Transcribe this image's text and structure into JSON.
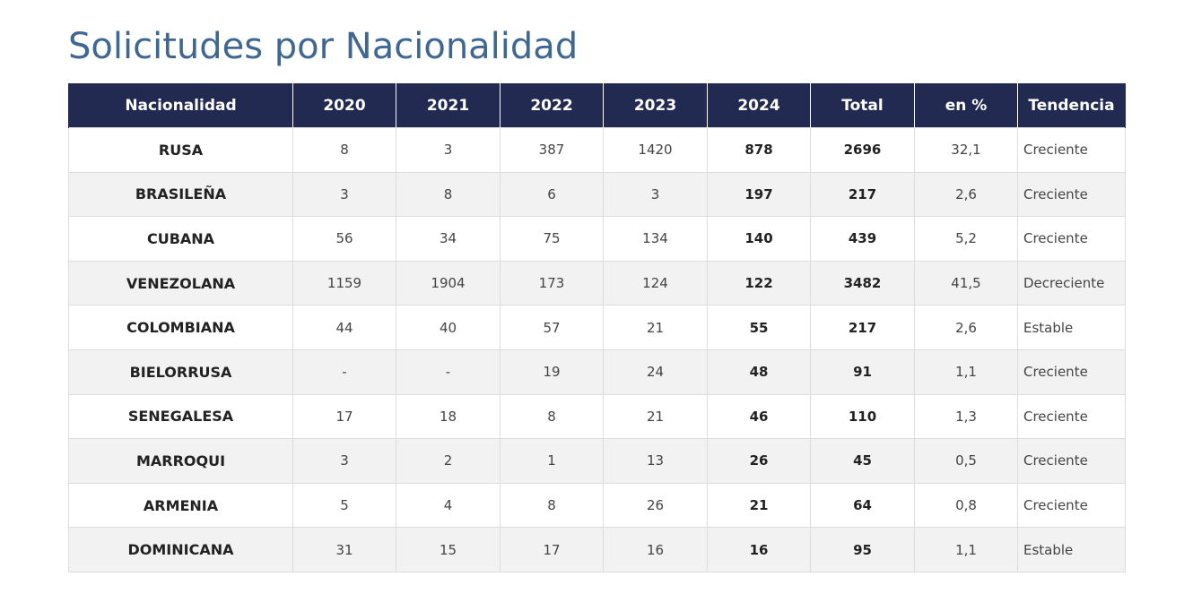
{
  "title": "Solicitudes por Nacionalidad",
  "table": {
    "headers": [
      "Nacionalidad",
      "2020",
      "2021",
      "2022",
      "2023",
      "2024",
      "Total",
      "en %",
      "Tendencia"
    ],
    "rows": [
      [
        "RUSA",
        "8",
        "3",
        "387",
        "1420",
        "878",
        "2696",
        "32,1",
        "Creciente"
      ],
      [
        "BRASILEÑA",
        "3",
        "8",
        "6",
        "3",
        "197",
        "217",
        "2,6",
        "Creciente"
      ],
      [
        "CUBANA",
        "56",
        "34",
        "75",
        "134",
        "140",
        "439",
        "5,2",
        "Creciente"
      ],
      [
        "VENEZOLANA",
        "1159",
        "1904",
        "173",
        "124",
        "122",
        "3482",
        "41,5",
        "Decreciente"
      ],
      [
        "COLOMBIANA",
        "44",
        "40",
        "57",
        "21",
        "55",
        "217",
        "2,6",
        "Estable"
      ],
      [
        "BIELORRUSA",
        "-",
        "-",
        "19",
        "24",
        "48",
        "91",
        "1,1",
        "Creciente"
      ],
      [
        "SENEGALESA",
        "17",
        "18",
        "8",
        "21",
        "46",
        "110",
        "1,3",
        "Creciente"
      ],
      [
        "MARROQUI",
        "3",
        "2",
        "1",
        "13",
        "26",
        "45",
        "0,5",
        "Creciente"
      ],
      [
        "ARMENIA",
        "5",
        "4",
        "8",
        "26",
        "21",
        "64",
        "0,8",
        "Creciente"
      ],
      [
        "DOMINICANA",
        "31",
        "15",
        "17",
        "16",
        "16",
        "95",
        "1,1",
        "Estable"
      ]
    ]
  },
  "colors": {
    "title": "#3f6794",
    "header_bg": "#232a52",
    "header_text": "#ffffff",
    "row_alt_bg": "#f2f2f2",
    "border": "#dcdcdc"
  }
}
